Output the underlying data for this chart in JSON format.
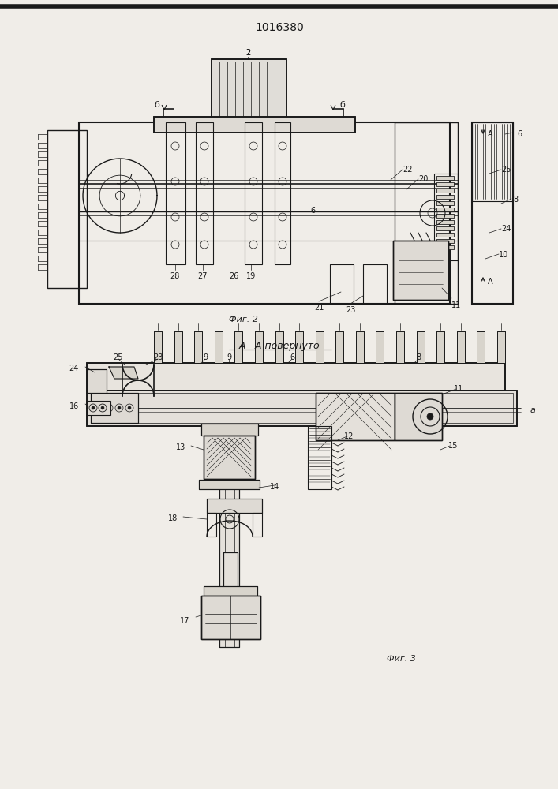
{
  "title": "1016380",
  "bg_color": "#f0ede8",
  "line_color": "#1a1a1a",
  "fig2_caption": "Фиг. 2",
  "fig3_caption": "Фиг. 3",
  "section_label": "А - А повернуто"
}
